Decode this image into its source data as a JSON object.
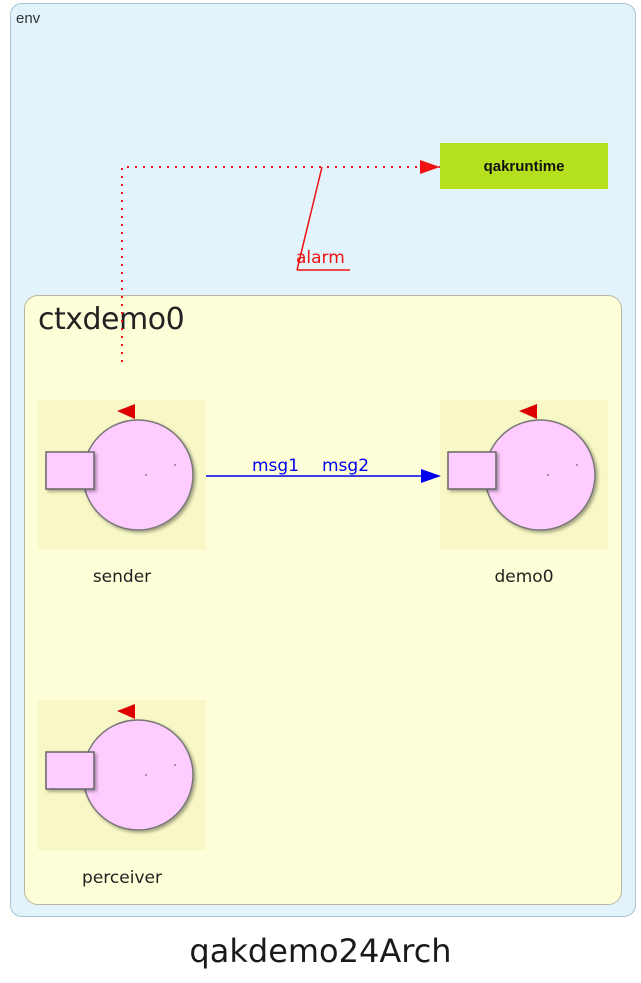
{
  "diagram": {
    "title": "qakdemo24Arch",
    "environment": {
      "label": "env"
    },
    "context": {
      "label": "ctxdemo0"
    },
    "external_actor": {
      "label": "qakruntime",
      "color": "#b5e01e"
    },
    "actors": [
      {
        "id": "sender",
        "label": "sender"
      },
      {
        "id": "demo0",
        "label": "demo0"
      },
      {
        "id": "perceiver",
        "label": "perceiver"
      }
    ],
    "edges": [
      {
        "from": "sender",
        "to": "demo0",
        "labels": [
          "msg1",
          "msg2"
        ],
        "color": "#0000ee",
        "style": "solid"
      },
      {
        "from": "sender",
        "to": "qakruntime",
        "labels": [
          "alarm"
        ],
        "color": "#ee1111",
        "style": "dotted"
      }
    ],
    "colors": {
      "env_bg": "#e3f3fb",
      "ctx_bg": "#fefed8",
      "actor_fill": "#ffccff",
      "actor_state_arrow": "#dd0000"
    }
  }
}
